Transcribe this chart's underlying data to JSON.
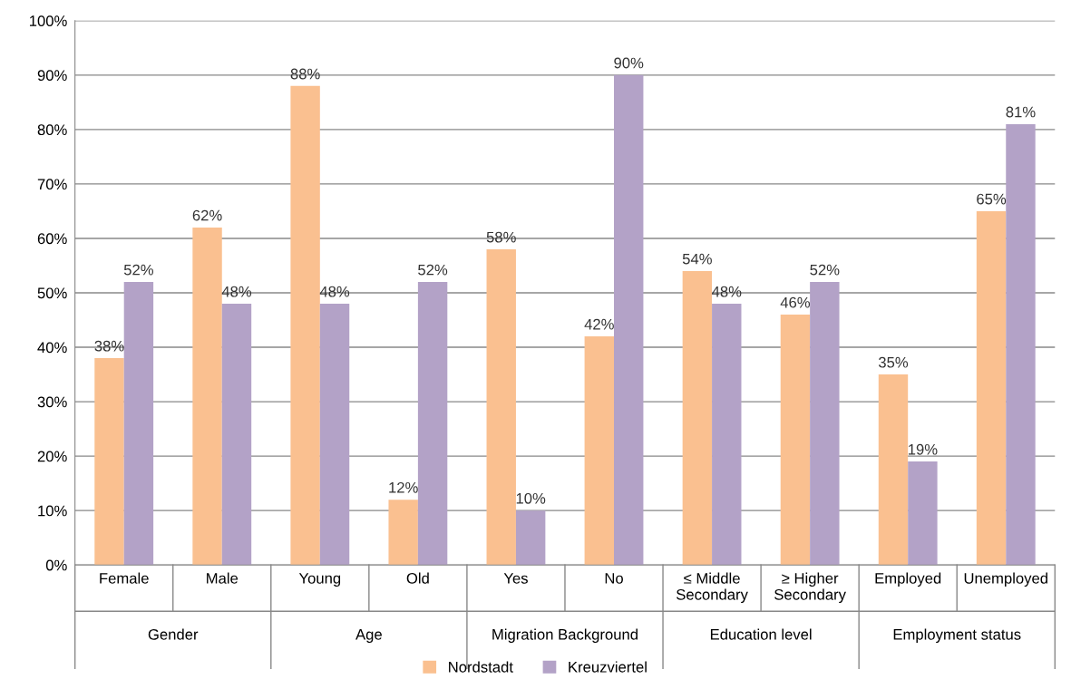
{
  "chart_data": {
    "type": "bar",
    "categories": [
      "Female",
      "Male",
      "Young",
      "Old",
      "Yes",
      "No",
      "≤ Middle\nSecondary",
      "≥ Higher\nSecondary",
      "Employed",
      "Unemployed"
    ],
    "series": [
      {
        "name": "Nordstadt",
        "color": "#fac090",
        "values": [
          38,
          62,
          88,
          12,
          58,
          42,
          54,
          46,
          35,
          65
        ],
        "value_labels": [
          "38%",
          "62%",
          "88%",
          "12%",
          "58%",
          "42%",
          "54%",
          "46%",
          "35%",
          "65%"
        ]
      },
      {
        "name": "Kreuzviertel",
        "color": "#b3a2c7",
        "values": [
          52,
          48,
          48,
          52,
          10,
          90,
          48,
          52,
          19,
          81
        ],
        "value_labels": [
          "52%",
          "48%",
          "48%",
          "52%",
          "10%",
          "90%",
          "48%",
          "52%",
          "19%",
          "81%"
        ]
      }
    ],
    "annotations": [
      "Gender",
      "Age",
      "Migration Background",
      "Education level",
      "Employment status"
    ],
    "ylim": [
      0,
      100
    ],
    "yticks": [
      {
        "value": 0,
        "label": "0%"
      },
      {
        "value": 10,
        "label": "10%"
      },
      {
        "value": 20,
        "label": "20%"
      },
      {
        "value": 30,
        "label": "30%"
      },
      {
        "value": 40,
        "label": "40%"
      },
      {
        "value": 50,
        "label": "50%"
      },
      {
        "value": 60,
        "label": "60%"
      },
      {
        "value": 70,
        "label": "70%"
      },
      {
        "value": 80,
        "label": "80%"
      },
      {
        "value": 90,
        "label": "90%"
      },
      {
        "value": 100,
        "label": "100%"
      }
    ],
    "grid": "y",
    "legend": "bottom"
  }
}
